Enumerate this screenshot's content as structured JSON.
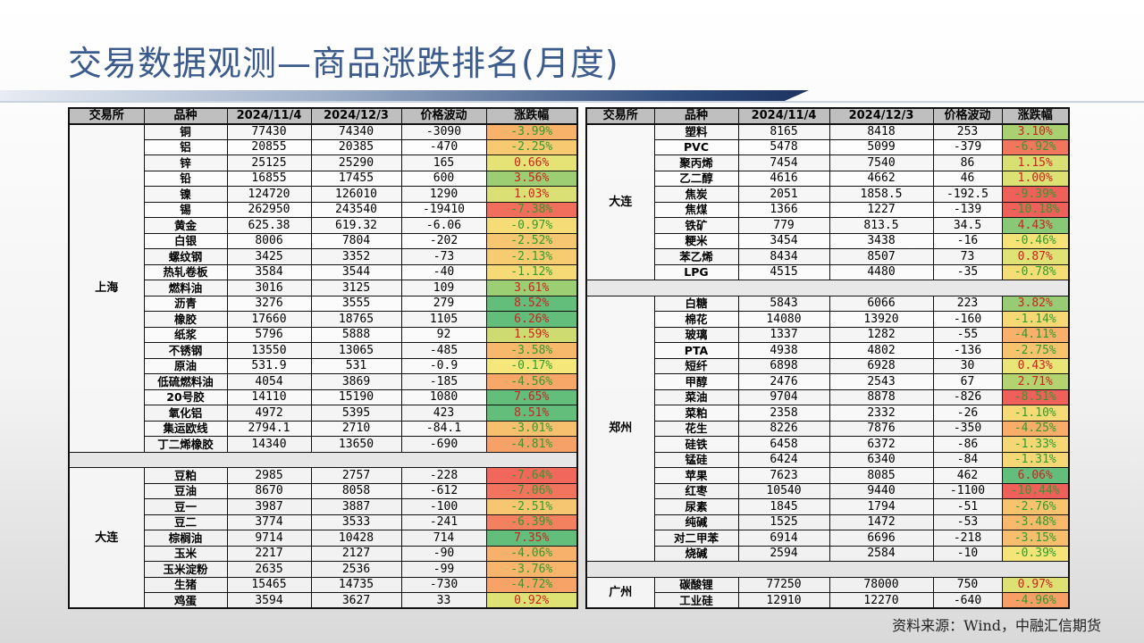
{
  "title": "交易数据观测—商品涨跌排名(月度)",
  "source": "资料来源：Wind，中融汇信期货",
  "headers": [
    "交易所",
    "品种",
    "2024/11/4",
    "2024/12/3",
    "价格波动",
    "涨跌幅"
  ],
  "left_table": [
    {
      "exchange": "上海",
      "rows": [
        [
          "铜",
          "77430",
          "74340",
          "-3090",
          "-3.99%"
        ],
        [
          "铝",
          "20855",
          "20385",
          "-470",
          "-2.25%"
        ],
        [
          "锌",
          "25125",
          "25290",
          "165",
          "0.66%"
        ],
        [
          "铅",
          "16855",
          "17455",
          "600",
          "3.56%"
        ],
        [
          "镍",
          "124720",
          "126010",
          "1290",
          "1.03%"
        ],
        [
          "锡",
          "262950",
          "243540",
          "-19410",
          "-7.38%"
        ],
        [
          "黄金",
          "625.38",
          "619.32",
          "-6.06",
          "-0.97%"
        ],
        [
          "白银",
          "8006",
          "7804",
          "-202",
          "-2.52%"
        ],
        [
          "螺纹钢",
          "3425",
          "3352",
          "-73",
          "-2.13%"
        ],
        [
          "热轧卷板",
          "3584",
          "3544",
          "-40",
          "-1.12%"
        ],
        [
          "燃料油",
          "3016",
          "3125",
          "109",
          "3.61%"
        ],
        [
          "沥青",
          "3276",
          "3555",
          "279",
          "8.52%"
        ],
        [
          "橡胶",
          "17660",
          "18765",
          "1105",
          "6.26%"
        ],
        [
          "纸浆",
          "5796",
          "5888",
          "92",
          "1.59%"
        ],
        [
          "不锈钢",
          "13550",
          "13065",
          "-485",
          "-3.58%"
        ],
        [
          "原油",
          "531.9",
          "531",
          "-0.9",
          "-0.17%"
        ],
        [
          "低硫燃料油",
          "4054",
          "3869",
          "-185",
          "-4.56%"
        ],
        [
          "20号胶",
          "14110",
          "15190",
          "1080",
          "7.65%"
        ],
        [
          "氧化铝",
          "4972",
          "5395",
          "423",
          "8.51%"
        ],
        [
          "集运欧线",
          "2794.1",
          "2710",
          "-84.1",
          "-3.01%"
        ],
        [
          "丁二烯橡胶",
          "14340",
          "13650",
          "-690",
          "-4.81%"
        ]
      ]
    },
    {
      "exchange": "大连",
      "rows": [
        [
          "豆粕",
          "2985",
          "2757",
          "-228",
          "-7.64%"
        ],
        [
          "豆油",
          "8670",
          "8058",
          "-612",
          "-7.06%"
        ],
        [
          "豆一",
          "3987",
          "3887",
          "-100",
          "-2.51%"
        ],
        [
          "豆二",
          "3774",
          "3533",
          "-241",
          "-6.39%"
        ],
        [
          "棕榈油",
          "9714",
          "10428",
          "714",
          "7.35%"
        ],
        [
          "玉米",
          "2217",
          "2127",
          "-90",
          "-4.06%"
        ],
        [
          "玉米淀粉",
          "2635",
          "2536",
          "-99",
          "-3.76%"
        ],
        [
          "生猪",
          "15465",
          "14735",
          "-730",
          "-4.72%"
        ],
        [
          "鸡蛋",
          "3594",
          "3627",
          "33",
          "0.92%"
        ]
      ]
    }
  ],
  "right_table": [
    {
      "exchange": "大连",
      "rows": [
        [
          "塑料",
          "8165",
          "8418",
          "253",
          "3.10%"
        ],
        [
          "PVC",
          "5478",
          "5099",
          "-379",
          "-6.92%"
        ],
        [
          "聚丙烯",
          "7454",
          "7540",
          "86",
          "1.15%"
        ],
        [
          "乙二醇",
          "4616",
          "4662",
          "46",
          "1.00%"
        ],
        [
          "焦炭",
          "2051",
          "1858.5",
          "-192.5",
          "-9.39%"
        ],
        [
          "焦煤",
          "1366",
          "1227",
          "-139",
          "-10.18%"
        ],
        [
          "铁矿",
          "779",
          "813.5",
          "34.5",
          "4.43%"
        ],
        [
          "粳米",
          "3454",
          "3438",
          "-16",
          "-0.46%"
        ],
        [
          "苯乙烯",
          "8434",
          "8507",
          "73",
          "0.87%"
        ],
        [
          "LPG",
          "4515",
          "4480",
          "-35",
          "-0.78%"
        ]
      ]
    },
    {
      "exchange": "郑州",
      "rows": [
        [
          "白糖",
          "5843",
          "6066",
          "223",
          "3.82%"
        ],
        [
          "棉花",
          "14080",
          "13920",
          "-160",
          "-1.14%"
        ],
        [
          "玻璃",
          "1337",
          "1282",
          "-55",
          "-4.11%"
        ],
        [
          "PTA",
          "4938",
          "4802",
          "-136",
          "-2.75%"
        ],
        [
          "短纤",
          "6898",
          "6928",
          "30",
          "0.43%"
        ],
        [
          "甲醇",
          "2476",
          "2543",
          "67",
          "2.71%"
        ],
        [
          "菜油",
          "9704",
          "8878",
          "-826",
          "-8.51%"
        ],
        [
          "菜粕",
          "2358",
          "2332",
          "-26",
          "-1.10%"
        ],
        [
          "花生",
          "8226",
          "7876",
          "-350",
          "-4.25%"
        ],
        [
          "硅铁",
          "6458",
          "6372",
          "-86",
          "-1.33%"
        ],
        [
          "锰硅",
          "6424",
          "6340",
          "-84",
          "-1.31%"
        ],
        [
          "苹果",
          "7623",
          "8085",
          "462",
          "6.06%"
        ],
        [
          "红枣",
          "10540",
          "9440",
          "-1100",
          "-10.44%"
        ],
        [
          "尿素",
          "1845",
          "1794",
          "-51",
          "-2.76%"
        ],
        [
          "纯碱",
          "1525",
          "1472",
          "-53",
          "-3.48%"
        ],
        [
          "对二甲苯",
          "6914",
          "6696",
          "-218",
          "-3.15%"
        ],
        [
          "烧碱",
          "2594",
          "2584",
          "-10",
          "-0.39%"
        ]
      ]
    },
    {
      "exchange": "广州",
      "rows": [
        [
          "碳酸锂",
          "77250",
          "78000",
          "750",
          "0.97%"
        ],
        [
          "工业硅",
          "12910",
          "12270",
          "-640",
          "-4.96%"
        ]
      ]
    }
  ],
  "colors": {
    "title": "#3a5b8c",
    "up_text": "#d02020",
    "down_text": "#2e9d2e"
  }
}
